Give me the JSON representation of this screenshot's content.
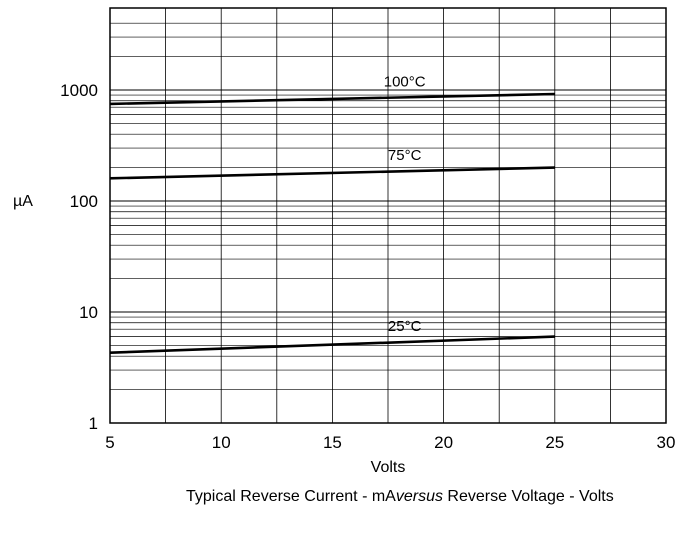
{
  "chart_data": {
    "type": "line",
    "x": [
      5,
      25
    ],
    "xlabel": "Volts",
    "ylabel": "µA",
    "xlim": [
      5,
      30
    ],
    "ylim": [
      1,
      5000
    ],
    "yscale": "log",
    "grid": true,
    "xticks": [
      "5",
      "10",
      "15",
      "20",
      "25",
      "30"
    ],
    "yticks": [
      "1",
      "10",
      "100",
      "1000"
    ],
    "series": [
      {
        "name": "100°C",
        "values": [
          750,
          920
        ]
      },
      {
        "name": "75°C",
        "values": [
          160,
          200
        ]
      },
      {
        "name": "25°C",
        "values": [
          4.3,
          6.0
        ]
      }
    ]
  },
  "caption": {
    "part1": "Typical Reverse Current - mA",
    "part2": "versus",
    "part3": " Reverse Voltage - Volts"
  }
}
